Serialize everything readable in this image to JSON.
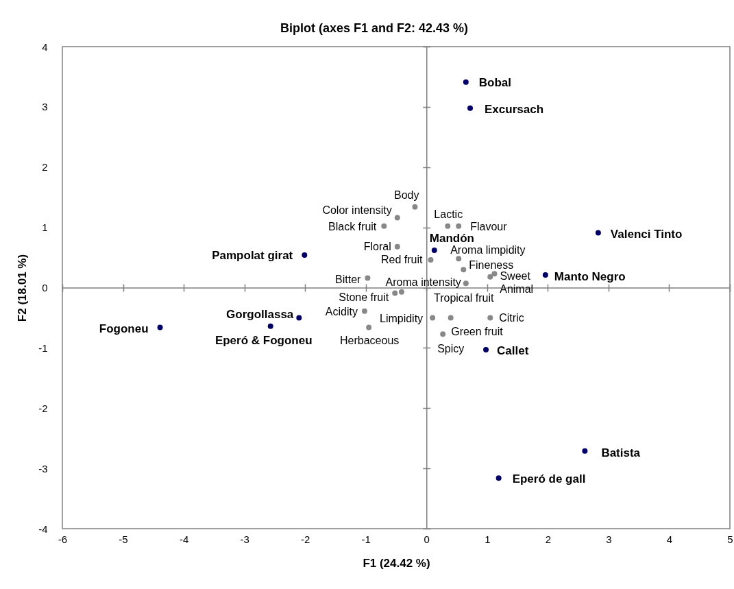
{
  "chart_data": {
    "type": "scatter",
    "title": "Biplot (axes F1 and F2: 42.43 %)",
    "xlabel": "F1 (24.42 %)",
    "ylabel": "F2 (18.01 %)",
    "xlim": [
      -6,
      5
    ],
    "ylim": [
      -4,
      4
    ],
    "xticks": [
      -6,
      -5,
      -4,
      -3,
      -2,
      -1,
      0,
      1,
      2,
      3,
      4,
      5
    ],
    "yticks": [
      -4,
      -3,
      -2,
      -1,
      0,
      1,
      2,
      3,
      4
    ],
    "marker": "circle",
    "series": [
      {
        "color": "#000066",
        "x": [
          0.65,
          0.72,
          2.83,
          0.13,
          -2.01,
          1.96,
          -2.1,
          -2.57,
          -4.39,
          0.98,
          2.61,
          1.19
        ],
        "values": [
          3.41,
          2.98,
          0.91,
          0.62,
          0.54,
          0.21,
          -0.5,
          -0.64,
          -0.66,
          -1.03,
          -2.71,
          -3.16
        ]
      },
      {
        "color": "#888888",
        "x": [
          -0.19,
          -0.48,
          -0.7,
          0.35,
          0.53,
          -0.48,
          0.07,
          0.53,
          0.61,
          1.12,
          1.05,
          -0.97,
          0.65,
          -0.52,
          -0.41,
          -1.02,
          0.1,
          0.4,
          1.05,
          -0.95,
          0.27
        ],
        "values": [
          1.34,
          1.16,
          1.02,
          1.02,
          1.02,
          0.68,
          0.46,
          0.48,
          0.3,
          0.23,
          0.18,
          0.16,
          0.07,
          -0.09,
          -0.07,
          -0.39,
          -0.5,
          -0.5,
          -0.5,
          -0.66,
          -0.77
        ]
      }
    ],
    "annotations": [
      {
        "text": "Bobal",
        "x": 0.65,
        "y": 3.41
      },
      {
        "text": "Excursach",
        "x": 0.72,
        "y": 2.98
      },
      {
        "text": "Valenci Tinto",
        "x": 2.83,
        "y": 0.91
      },
      {
        "text": "Mandón",
        "x": 0.13,
        "y": 0.62
      },
      {
        "text": "Pampolat girat",
        "x": -2.01,
        "y": 0.54
      },
      {
        "text": "Manto Negro",
        "x": 1.96,
        "y": 0.21
      },
      {
        "text": "Gorgollassa",
        "x": -2.1,
        "y": -0.5
      },
      {
        "text": "Eperó & Fogoneu",
        "x": -2.57,
        "y": -0.64
      },
      {
        "text": "Fogoneu",
        "x": -4.39,
        "y": -0.66
      },
      {
        "text": "Callet",
        "x": 0.98,
        "y": -1.03
      },
      {
        "text": "Batista",
        "x": 2.61,
        "y": -2.71
      },
      {
        "text": "Eperó de gall",
        "x": 1.19,
        "y": -3.16
      },
      {
        "text": "Body",
        "x": -0.19,
        "y": 1.34
      },
      {
        "text": "Color intensity",
        "x": -0.48,
        "y": 1.16
      },
      {
        "text": "Black fruit",
        "x": -0.7,
        "y": 1.02
      },
      {
        "text": "Lactic",
        "x": 0.35,
        "y": 1.02
      },
      {
        "text": "Flavour",
        "x": 0.53,
        "y": 1.02
      },
      {
        "text": "Floral",
        "x": -0.48,
        "y": 0.68
      },
      {
        "text": "Red fruit",
        "x": 0.07,
        "y": 0.46
      },
      {
        "text": "Aroma limpidity",
        "x": 0.53,
        "y": 0.48
      },
      {
        "text": "Fineness",
        "x": 0.61,
        "y": 0.3
      },
      {
        "text": "Sweet",
        "x": 1.12,
        "y": 0.23
      },
      {
        "text": "Animal",
        "x": 1.05,
        "y": 0.18
      },
      {
        "text": "Bitter",
        "x": -0.97,
        "y": 0.16
      },
      {
        "text": "Aroma intensity",
        "x": 0.65,
        "y": 0.07
      },
      {
        "text": "Stone fruit",
        "x": -0.52,
        "y": -0.09
      },
      {
        "text": "Tropical fruit",
        "x": -0.41,
        "y": -0.07
      },
      {
        "text": "Acidity",
        "x": -1.02,
        "y": -0.39
      },
      {
        "text": "Limpidity",
        "x": 0.1,
        "y": -0.5
      },
      {
        "text": "Spicy",
        "x": 0.4,
        "y": -0.5
      },
      {
        "text": "Citric",
        "x": 1.05,
        "y": -0.5
      },
      {
        "text": "Herbaceous",
        "x": -0.95,
        "y": -0.66
      },
      {
        "text": "Green fruit",
        "x": 0.27,
        "y": -0.77
      }
    ]
  }
}
